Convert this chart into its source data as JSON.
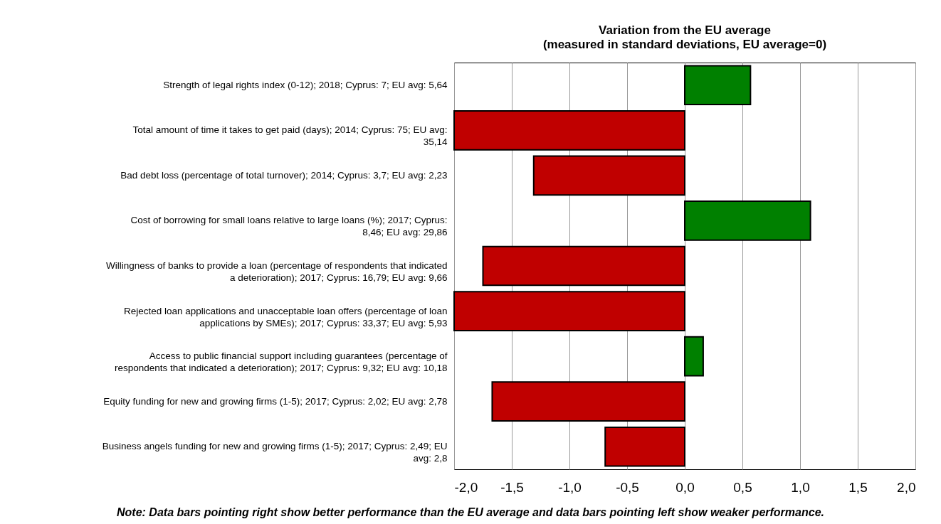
{
  "chart_data": {
    "type": "bar",
    "orientation": "horizontal",
    "title": "Variation from the EU average",
    "subtitle": "(measured in standard deviations, EU average=0)",
    "categories": [
      "Strength of legal rights index (0-12); 2018; Cyprus: 7; EU avg: 5,64",
      "Total amount of time it takes to get paid (days); 2014; Cyprus: 75; EU avg: 35,14",
      "Bad debt loss (percentage of total turnover); 2014; Cyprus: 3,7; EU avg: 2,23",
      "Cost of borrowing for small loans relative to large loans (%); 2017; Cyprus: 8,46; EU avg: 29,86",
      "Willingness of banks to provide a loan (percentage of respondents that indicated a deterioration); 2017; Cyprus: 16,79; EU avg: 9,66",
      "Rejected loan applications and unacceptable loan offers (percentage of loan applications by SMEs); 2017; Cyprus: 33,37; EU avg: 5,93",
      "Access to public financial support including guarantees (percentage of respondents that indicated a deterioration); 2017; Cyprus: 9,32; EU avg: 10,18",
      "Equity funding for new and growing firms (1-5); 2017; Cyprus: 2,02; EU avg: 2,78",
      "Business angels funding for new and growing firms (1-5); 2017; Cyprus: 2,49; EU avg: 2,8"
    ],
    "values": [
      0.57,
      -2.0,
      -1.31,
      1.09,
      -1.75,
      -2.0,
      0.16,
      -1.67,
      -0.69
    ],
    "colors": [
      "#008000",
      "#c00000",
      "#c00000",
      "#008000",
      "#c00000",
      "#c00000",
      "#008000",
      "#c00000",
      "#c00000"
    ],
    "xlim": [
      -2,
      2
    ],
    "xticks": [
      {
        "value": -2,
        "label": "-2,0"
      },
      {
        "value": -1.5,
        "label": "-1,5"
      },
      {
        "value": -1,
        "label": "-1,0"
      },
      {
        "value": -0.5,
        "label": "-0,5"
      },
      {
        "value": 0,
        "label": "0,0"
      },
      {
        "value": 0.5,
        "label": "0,5"
      },
      {
        "value": 1,
        "label": "1,0"
      },
      {
        "value": 1.5,
        "label": "1,5"
      },
      {
        "value": 2,
        "label": "2,0"
      }
    ],
    "grid": "x",
    "annotations": [
      "Note: Data bars pointing right show better performance than the EU average and data bars pointing left show weaker performance."
    ]
  }
}
